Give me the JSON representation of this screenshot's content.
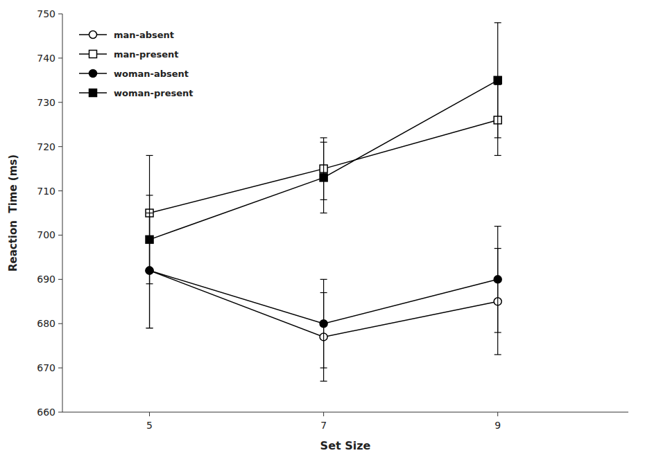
{
  "chart_data": {
    "type": "line",
    "xlabel": "Set Size",
    "ylabel": "Reaction  Time (ms)",
    "x": [
      5,
      7,
      9
    ],
    "xlim": [
      4,
      10.5
    ],
    "xticks": [
      5,
      7,
      9
    ],
    "ylim": [
      660,
      750
    ],
    "yticks": [
      660,
      670,
      680,
      690,
      700,
      710,
      720,
      730,
      740,
      750
    ],
    "grid": false,
    "legend": "upper left",
    "series": [
      {
        "name": "man-absent",
        "color": "#000000",
        "marker": "open-circle",
        "values": [
          692,
          677,
          685
        ],
        "errors": [
          13,
          10,
          12
        ]
      },
      {
        "name": "man-present",
        "color": "#000000",
        "marker": "open-square",
        "values": [
          705,
          715,
          726
        ],
        "errors": [
          13,
          7,
          8
        ]
      },
      {
        "name": "woman-absent",
        "color": "#000000",
        "marker": "circle",
        "values": [
          692,
          680,
          690
        ],
        "errors": [
          13,
          10,
          12
        ]
      },
      {
        "name": "woman-present",
        "color": "#000000",
        "marker": "square",
        "values": [
          699,
          713,
          735
        ],
        "errors": [
          10,
          8,
          13
        ]
      }
    ]
  }
}
